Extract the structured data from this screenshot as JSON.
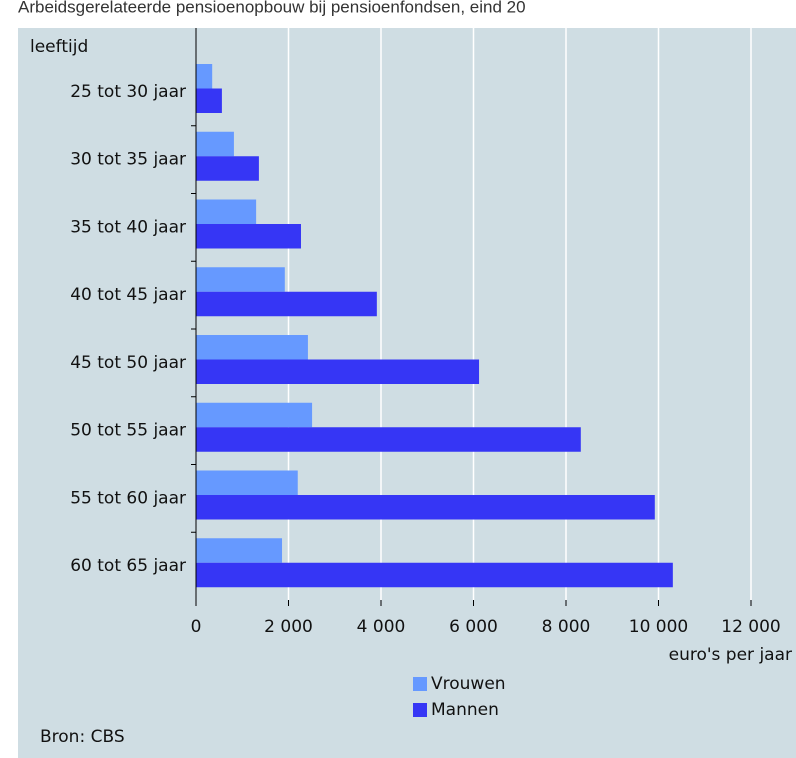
{
  "chart_data": {
    "type": "barh",
    "title": "Arbeidsgerelateerde pensioenopbouw bij pensioenfondsen, eind 20",
    "y_label": "leeftijd",
    "x_label": "euro's per jaar",
    "source": "Bron: CBS",
    "categories": [
      "25 tot 30 jaar",
      "30 tot 35 jaar",
      "35 tot 40 jaar",
      "40 tot 45 jaar",
      "45 tot 50 jaar",
      "50 tot 55 jaar",
      "55 tot 60 jaar",
      "60 tot 65 jaar"
    ],
    "series": [
      {
        "name": "Vrouwen",
        "color": "#6699ff",
        "values": [
          350,
          820,
          1300,
          1920,
          2420,
          2510,
          2200,
          1860
        ]
      },
      {
        "name": "Mannen",
        "color": "#3636f5",
        "values": [
          560,
          1360,
          2270,
          3910,
          6120,
          8320,
          9920,
          10310
        ]
      }
    ],
    "xlim": [
      0,
      12000
    ],
    "xticks": [
      0,
      {
        "value": 2000,
        "label": "2 000"
      },
      {
        "value": 4000,
        "label": "4 000"
      },
      {
        "value": 6000,
        "label": "6 000"
      },
      {
        "value": 8000,
        "label": "8 000"
      },
      {
        "value": 10000,
        "label": "10 000"
      },
      {
        "value": 12000,
        "label": "12 000"
      }
    ],
    "grid": true,
    "legend": "bottom"
  }
}
